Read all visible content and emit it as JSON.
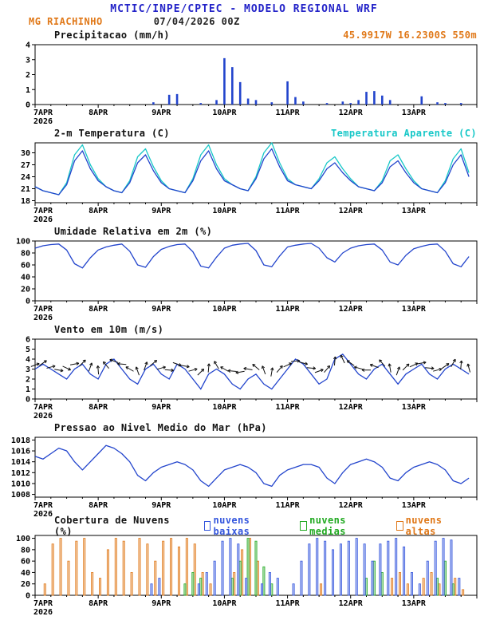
{
  "header": {
    "title": "MCTIC/INPE/CPTEC - MODELO REGIONAL WRF",
    "station": "MG RIACHINHO",
    "run": "07/04/2026 00Z",
    "colors": {
      "title": "#2222c8",
      "station": "#e07818",
      "run": "#222222"
    }
  },
  "x_axis": {
    "start_hour": 0,
    "end_hour": 168,
    "step_hours": 3,
    "day_labels": [
      "7APR",
      "8APR",
      "9APR",
      "10APR",
      "11APR",
      "12APR",
      "13APR"
    ],
    "year_label": "2026",
    "x_hours": [
      0,
      3,
      6,
      9,
      12,
      15,
      18,
      21,
      24,
      27,
      30,
      33,
      36,
      39,
      42,
      45,
      48,
      51,
      54,
      57,
      60,
      63,
      66,
      69,
      72,
      75,
      78,
      81,
      84,
      87,
      90,
      93,
      96,
      99,
      102,
      105,
      108,
      111,
      114,
      117,
      120,
      123,
      126,
      129,
      132,
      135,
      138,
      141,
      144,
      147,
      150,
      153,
      156,
      159,
      162,
      165
    ]
  },
  "chart_data": [
    {
      "id": "precip",
      "type": "bar",
      "title": "Precipitacao (mm/h)",
      "right_label": {
        "text": "45.9917W 16.2300S 550m",
        "color": "#e07818"
      },
      "ylim": [
        0,
        4
      ],
      "yticks": [
        0,
        1,
        2,
        3,
        4
      ],
      "bar_color": "#2244cc",
      "values": [
        0,
        0,
        0,
        0,
        0,
        0,
        0,
        0,
        0,
        0,
        0,
        0,
        0,
        0,
        0,
        0.15,
        0,
        0.65,
        0.7,
        0,
        0,
        0.1,
        0,
        0.3,
        3.1,
        2.5,
        1.5,
        0.4,
        0.3,
        0,
        0.15,
        0,
        1.55,
        0.5,
        0.2,
        0,
        0,
        0.1,
        0,
        0.2,
        0.1,
        0.3,
        0.85,
        0.9,
        0.6,
        0.3,
        0,
        0,
        0,
        0.55,
        0,
        0.15,
        0.1,
        0,
        0.1,
        0
      ]
    },
    {
      "id": "temp",
      "type": "line",
      "title": "2-m Temperatura (C)",
      "right_label": {
        "text": "Temperatura Aparente (C)",
        "color": "#18c8c8"
      },
      "ylim": [
        17.5,
        32.5
      ],
      "yticks": [
        18,
        21,
        24,
        27,
        30
      ],
      "series": [
        {
          "name": "Temperatura Aparente (C)",
          "color": "#18c8c8",
          "values": [
            21.5,
            20.5,
            20,
            19.5,
            22.5,
            29.5,
            32,
            27,
            23.5,
            21.5,
            20.5,
            20,
            23,
            29,
            31,
            26.5,
            23,
            21,
            20.5,
            20,
            23.5,
            29.5,
            32,
            27,
            23.5,
            22,
            21,
            20.5,
            24,
            30,
            32.5,
            27.5,
            23.5,
            22,
            21.5,
            21,
            23.5,
            27.5,
            29,
            26,
            23.5,
            21.5,
            21,
            20.5,
            23,
            28,
            29.5,
            26,
            23,
            21,
            20.5,
            20,
            23,
            28.5,
            31,
            25
          ]
        },
        {
          "name": "2-m Temperatura (C)",
          "color": "#2244cc",
          "values": [
            21.5,
            20.5,
            20,
            19.5,
            22,
            28,
            30.5,
            26,
            23,
            21.5,
            20.5,
            20,
            22.5,
            27.5,
            29.5,
            25.5,
            22.5,
            21,
            20.5,
            20,
            23,
            28,
            30.5,
            26,
            23,
            22,
            21,
            20.5,
            23.5,
            28.5,
            31,
            26.5,
            23,
            22,
            21.5,
            21,
            23,
            26,
            27.5,
            25,
            23,
            21.5,
            21,
            20.5,
            22.5,
            26.5,
            28,
            25,
            22.5,
            21,
            20.5,
            20,
            22.5,
            27,
            29.5,
            24
          ]
        }
      ]
    },
    {
      "id": "rh",
      "type": "line",
      "title": "Umidade Relativa em 2m (%)",
      "right_label": {
        "text": "",
        "color": "#111111"
      },
      "ylim": [
        0,
        100
      ],
      "yticks": [
        0,
        20,
        40,
        60,
        80,
        100
      ],
      "series": [
        {
          "name": "Umidade Relativa",
          "color": "#2244cc",
          "values": [
            88,
            92,
            94,
            95,
            85,
            62,
            55,
            72,
            85,
            90,
            93,
            95,
            83,
            60,
            56,
            74,
            86,
            91,
            94,
            95,
            82,
            58,
            55,
            73,
            88,
            93,
            95,
            96,
            84,
            60,
            57,
            75,
            90,
            93,
            95,
            96,
            88,
            72,
            65,
            80,
            88,
            92,
            94,
            95,
            85,
            65,
            60,
            76,
            87,
            91,
            94,
            95,
            83,
            62,
            57,
            74
          ]
        }
      ]
    },
    {
      "id": "wind",
      "type": "wind",
      "title": "Vento em 10m (m/s)",
      "right_label": {
        "text": "",
        "color": "#111111"
      },
      "ylim": [
        0,
        6
      ],
      "yticks": [
        0,
        1,
        2,
        3,
        4,
        5,
        6
      ],
      "line_color": "#2244cc",
      "arrow_color": "#111111",
      "speed": [
        3.0,
        3.5,
        3.0,
        2.5,
        2.0,
        3.0,
        3.5,
        2.5,
        2.0,
        3.5,
        4.0,
        3.0,
        2.0,
        1.5,
        3.0,
        3.5,
        2.5,
        2.0,
        3.5,
        3.0,
        2.0,
        1.0,
        2.5,
        3.0,
        2.5,
        1.5,
        1.0,
        2.0,
        2.5,
        1.5,
        1.0,
        2.0,
        3.0,
        4.0,
        3.5,
        2.5,
        1.5,
        2.0,
        4.0,
        4.5,
        3.5,
        2.5,
        2.0,
        3.0,
        3.5,
        2.5,
        1.5,
        2.5,
        3.0,
        3.5,
        2.5,
        2.0,
        3.0,
        3.5,
        3.0,
        2.5
      ],
      "arrow_y": [
        3.4,
        3.6,
        3.2,
        2.9,
        3.1,
        3.5,
        3.6,
        3.2,
        2.9,
        3.4,
        3.8,
        3.5,
        3.0,
        2.8,
        3.3,
        3.6,
        3.1,
        2.9,
        3.5,
        3.3,
        2.9,
        2.7,
        3.1,
        3.4,
        3.0,
        2.8,
        2.7,
        3.0,
        3.2,
        2.9,
        2.7,
        3.0,
        3.4,
        3.8,
        3.6,
        3.1,
        2.8,
        3.0,
        3.8,
        4.0,
        3.6,
        3.1,
        2.9,
        3.3,
        3.6,
        3.1,
        2.8,
        3.2,
        3.4,
        3.6,
        3.1,
        2.9,
        3.3,
        3.6,
        3.4,
        3.1
      ],
      "arrow_angles_deg": [
        20,
        35,
        15,
        -10,
        -25,
        10,
        45,
        70,
        95,
        130,
        160,
        175,
        150,
        110,
        70,
        40,
        15,
        -5,
        -20,
        -10,
        15,
        45,
        85,
        120,
        150,
        175,
        190,
        170,
        140,
        110,
        80,
        50,
        25,
        5,
        -15,
        -5,
        20,
        50,
        85,
        115,
        145,
        165,
        180,
        160,
        130,
        100,
        70,
        45,
        25,
        10,
        -5,
        15,
        35,
        60,
        85,
        105
      ]
    },
    {
      "id": "pressure",
      "type": "line",
      "title": "Pressao ao Nivel Medio do Mar (hPa)",
      "right_label": {
        "text": "",
        "color": "#111111"
      },
      "ylim": [
        1007.5,
        1018.5
      ],
      "yticks": [
        1008,
        1010,
        1012,
        1014,
        1016,
        1018
      ],
      "series": [
        {
          "name": "Pressao",
          "color": "#2244cc",
          "values": [
            1015,
            1014.5,
            1015.5,
            1016.5,
            1016,
            1014,
            1012.5,
            1014,
            1015.5,
            1017,
            1016.5,
            1015.5,
            1014,
            1011.5,
            1010.5,
            1012,
            1013,
            1013.5,
            1014,
            1013.5,
            1012.5,
            1010.5,
            1009.5,
            1011,
            1012.5,
            1013,
            1013.5,
            1013,
            1012,
            1010,
            1009.5,
            1011.5,
            1012.5,
            1013,
            1013.5,
            1013.5,
            1013,
            1011,
            1010,
            1012,
            1013.5,
            1014,
            1014.5,
            1014,
            1013,
            1011,
            1010.5,
            1012,
            1013,
            1013.5,
            1014,
            1013.5,
            1012.5,
            1010.5,
            1010,
            1011
          ]
        }
      ]
    },
    {
      "id": "clouds",
      "type": "multibar",
      "title": "Cobertura de Nuvens (%)",
      "ylim": [
        0,
        105
      ],
      "yticks": [
        0,
        20,
        40,
        60,
        80,
        100
      ],
      "series": [
        {
          "name": "low",
          "label": "nuvens baixas",
          "color": "#3355dd",
          "values": [
            0,
            0,
            0,
            0,
            0,
            0,
            0,
            0,
            0,
            0,
            0,
            0,
            0,
            0,
            0,
            20,
            30,
            0,
            0,
            0,
            0,
            20,
            40,
            60,
            95,
            100,
            90,
            30,
            0,
            20,
            40,
            30,
            0,
            20,
            60,
            90,
            100,
            95,
            80,
            90,
            95,
            100,
            90,
            60,
            90,
            95,
            100,
            85,
            40,
            20,
            60,
            95,
            100,
            97,
            30,
            0
          ]
        },
        {
          "name": "mid",
          "label": "nuvens medias",
          "color": "#22aa22",
          "values": [
            0,
            0,
            0,
            0,
            0,
            0,
            0,
            0,
            0,
            0,
            0,
            0,
            0,
            0,
            0,
            0,
            0,
            0,
            0,
            20,
            40,
            30,
            0,
            0,
            0,
            30,
            60,
            100,
            95,
            50,
            20,
            0,
            0,
            0,
            0,
            0,
            0,
            0,
            0,
            0,
            0,
            0,
            30,
            60,
            40,
            0,
            0,
            0,
            0,
            0,
            0,
            30,
            60,
            20,
            0,
            0
          ]
        },
        {
          "name": "high",
          "label": "nuvens altas",
          "color": "#e07818",
          "values": [
            0,
            20,
            90,
            100,
            60,
            95,
            100,
            40,
            30,
            80,
            100,
            95,
            40,
            100,
            90,
            60,
            95,
            100,
            85,
            100,
            90,
            40,
            20,
            0,
            0,
            40,
            80,
            100,
            60,
            0,
            0,
            0,
            0,
            0,
            0,
            0,
            20,
            0,
            0,
            0,
            0,
            0,
            0,
            0,
            0,
            30,
            40,
            20,
            0,
            30,
            40,
            20,
            0,
            30,
            10,
            0
          ]
        }
      ]
    }
  ]
}
